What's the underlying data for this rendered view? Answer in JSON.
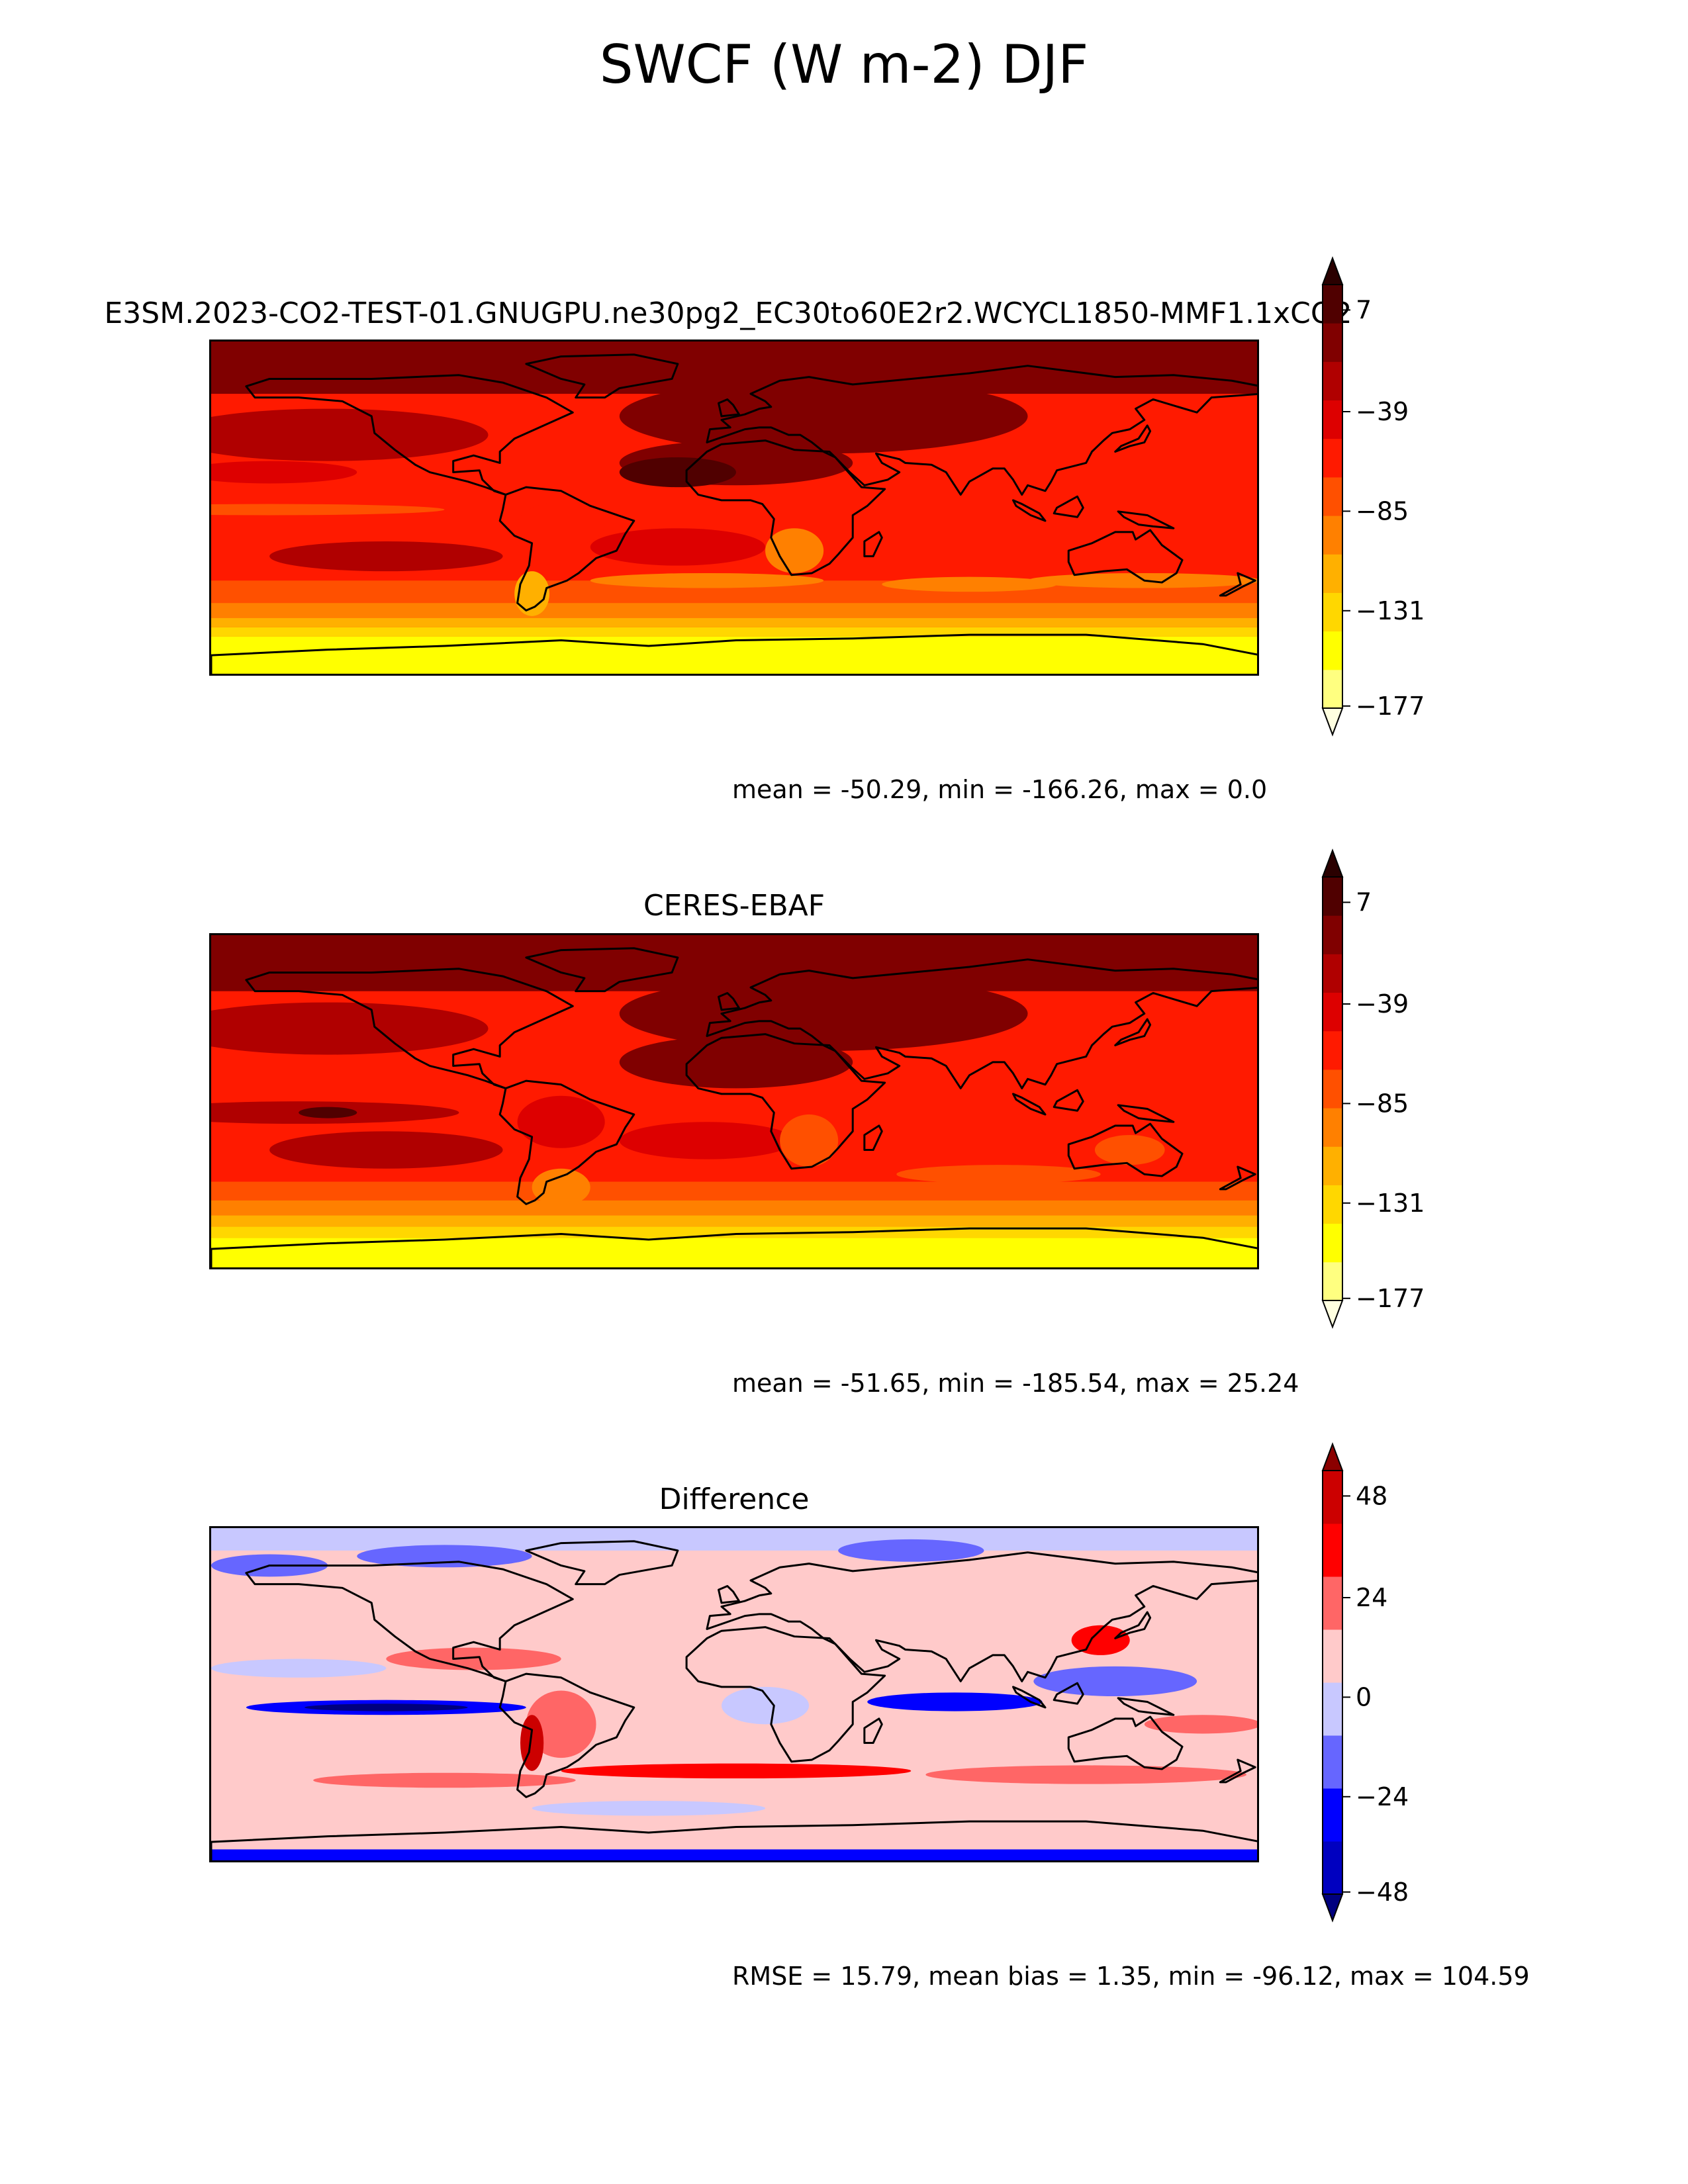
{
  "figure": {
    "title": "SWCF (W m-2) DJF"
  },
  "colors": {
    "swcf_scale": [
      "#ffffe0",
      "#ffff80",
      "#ffff00",
      "#ffd700",
      "#ffb000",
      "#ff8000",
      "#ff5000",
      "#ff1a00",
      "#dd0000",
      "#b00000",
      "#800000",
      "#500000",
      "#2a0000"
    ],
    "diff_scale": [
      "#00007f",
      "#0000c0",
      "#0000ff",
      "#6666ff",
      "#c8c8ff",
      "#ffcaca",
      "#ff6666",
      "#ff0000",
      "#cc0000",
      "#8b0000"
    ]
  },
  "chart_data": [
    {
      "type": "heatmap",
      "title": "E3SM.2023-CO2-TEST-01.GNUGPU.ne30pg2_EC30to60E2r2.WCYCL1850-MMF1.1xCO2",
      "stats": "mean = -50.29, min = -166.26, max = 0.0",
      "colorbar_ticks": [
        "7",
        "−39",
        "−85",
        "−131",
        "−177"
      ],
      "colorbar_range": [
        -200,
        30
      ],
      "extend": "both",
      "mean": -50.29,
      "min": -166.26,
      "max": 0.0
    },
    {
      "type": "heatmap",
      "title": "CERES-EBAF",
      "stats": "mean = -51.65, min = -185.54, max = 25.24",
      "colorbar_ticks": [
        "7",
        "−39",
        "−85",
        "−131",
        "−177"
      ],
      "colorbar_range": [
        -200,
        30
      ],
      "extend": "both",
      "mean": -51.65,
      "min": -185.54,
      "max": 25.24
    },
    {
      "type": "heatmap",
      "title": "Difference",
      "stats": "RMSE = 15.79, mean bias = 1.35, min = -96.12, max = 104.59",
      "colorbar_ticks": [
        "48",
        "24",
        "0",
        "−24",
        "−48"
      ],
      "colorbar_range": [
        -60,
        60
      ],
      "extend": "both",
      "rmse": 15.79,
      "mean_bias": 1.35,
      "min": -96.12,
      "max": 104.59
    }
  ]
}
